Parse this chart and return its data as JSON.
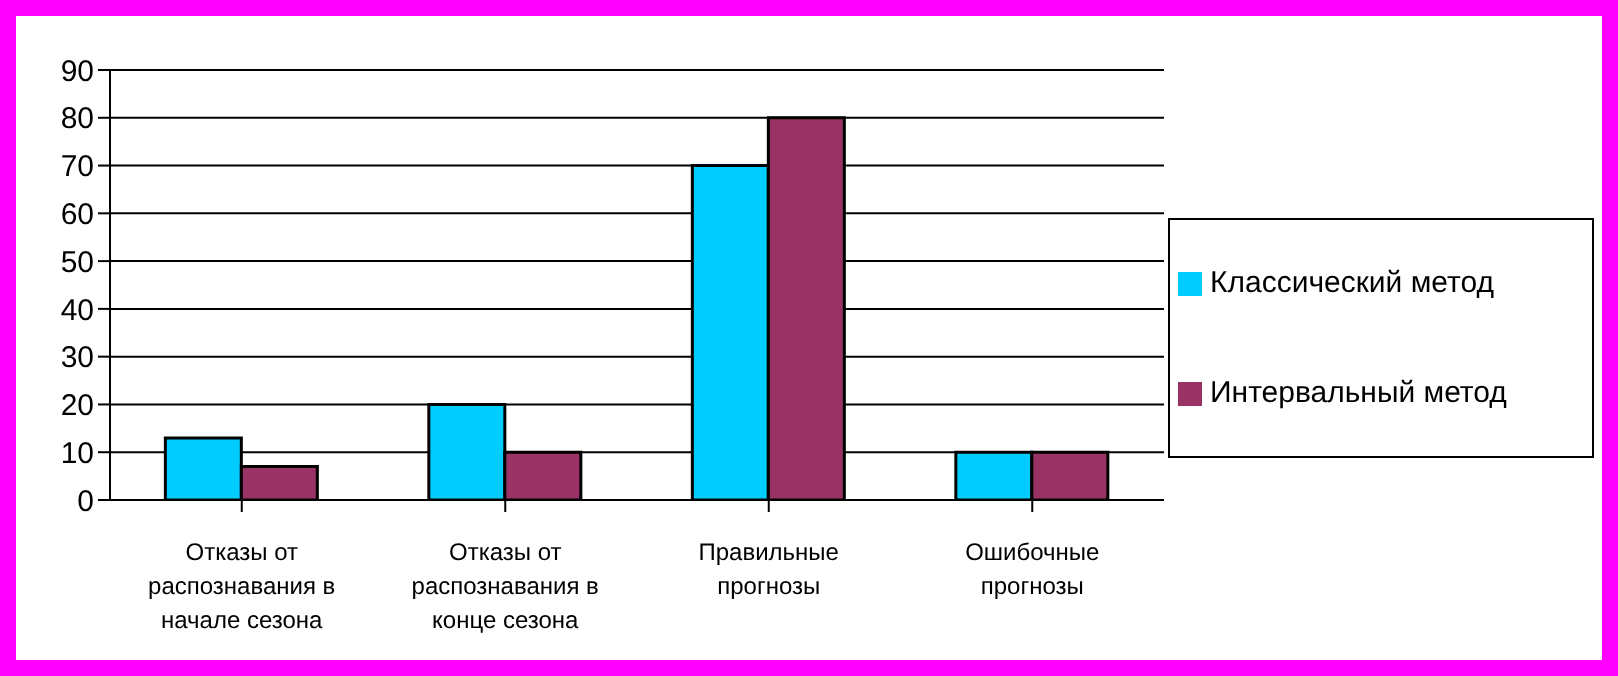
{
  "chart_data": {
    "type": "bar",
    "categories": [
      "Отказы от распознавания в начале сезона",
      "Отказы от распознавания в конце сезона",
      "Правильные прогнозы",
      "Ошибочные прогнозы"
    ],
    "series": [
      {
        "name": "Классический метод",
        "color": "#00ccff",
        "values": [
          13,
          20,
          70,
          10
        ]
      },
      {
        "name": "Интервальный метод",
        "color": "#993366",
        "values": [
          7,
          10,
          80,
          10
        ]
      }
    ],
    "ylim": [
      0,
      90
    ],
    "yticks": [
      0,
      10,
      20,
      30,
      40,
      50,
      60,
      70,
      80,
      90
    ],
    "grid": "y",
    "legend": "right"
  }
}
